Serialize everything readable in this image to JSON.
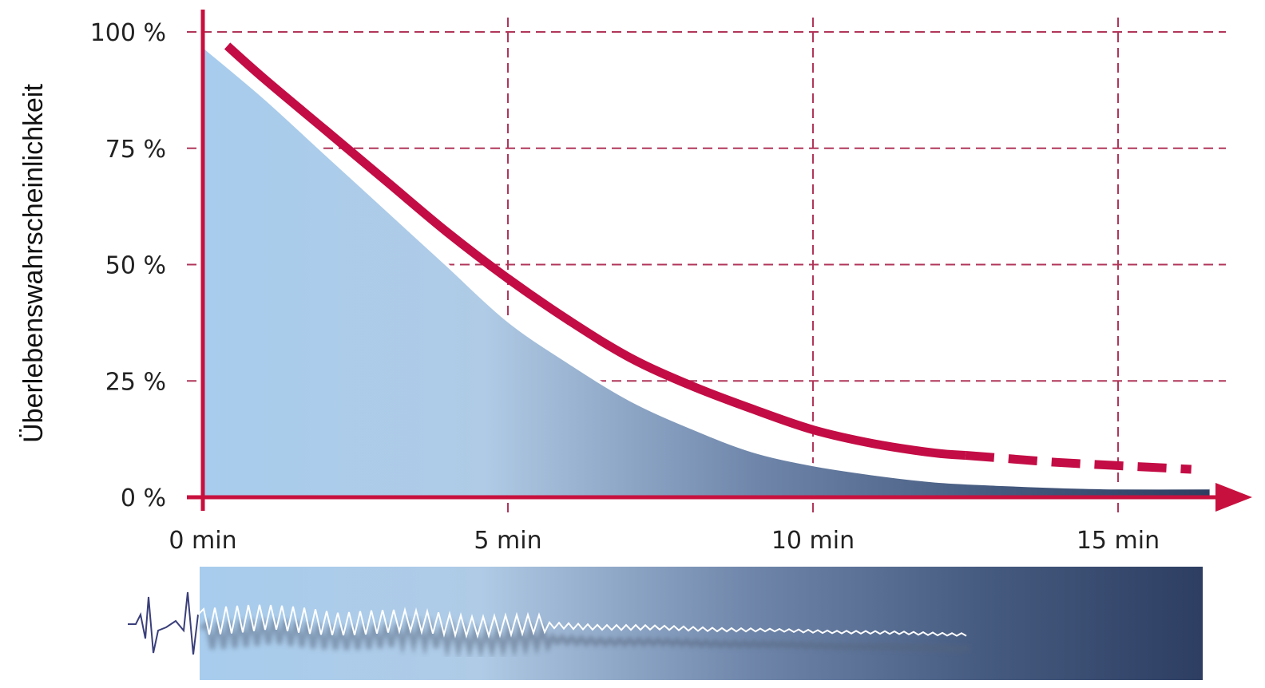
{
  "chart_data": {
    "type": "area",
    "title": "",
    "xlabel": "",
    "ylabel": "Überlebenswahrscheinlichkeit",
    "xlim": [
      0,
      16.5
    ],
    "ylim": [
      0,
      100
    ],
    "x_ticks": [
      0,
      5,
      10,
      15
    ],
    "x_tick_labels": [
      "0 min",
      "5 min",
      "10 min",
      "15 min"
    ],
    "y_ticks": [
      0,
      25,
      50,
      75,
      100
    ],
    "y_tick_labels": [
      "0 %",
      "25 %",
      "50 %",
      "75 %",
      "100 %"
    ],
    "grid": true,
    "legend": "none",
    "series": [
      {
        "style": "area",
        "x": [
          0,
          1,
          2,
          3,
          4,
          5,
          6,
          7,
          8,
          9,
          10,
          11,
          12,
          13,
          14,
          15,
          16.5
        ],
        "y": [
          97,
          86,
          74,
          62,
          50,
          38,
          29,
          21,
          15,
          10,
          7,
          5,
          3.5,
          2.8,
          2.3,
          2,
          2
        ]
      },
      {
        "style": "line",
        "x": [
          0.4,
          1,
          2,
          3,
          4,
          5,
          6,
          7,
          8,
          9,
          10,
          11,
          12,
          12.5
        ],
        "y": [
          97,
          90,
          79,
          68,
          57,
          47,
          38,
          30,
          24,
          19,
          14.5,
          11.5,
          9.5,
          9
        ]
      },
      {
        "style": "dashed",
        "x": [
          12.5,
          13,
          14,
          15,
          16.2
        ],
        "y": [
          9,
          8.5,
          7.5,
          6.8,
          6
        ]
      }
    ]
  },
  "colors": {
    "axis": "#c8103e",
    "grid": "#b0365a",
    "curve": "#c30c45",
    "gradient_start": "#a8cced",
    "gradient_mid": "#adc8e2",
    "gradient_end": "#2d3e62",
    "ecg": "#ffffff",
    "ecg_lead": "#3a3f7a"
  }
}
